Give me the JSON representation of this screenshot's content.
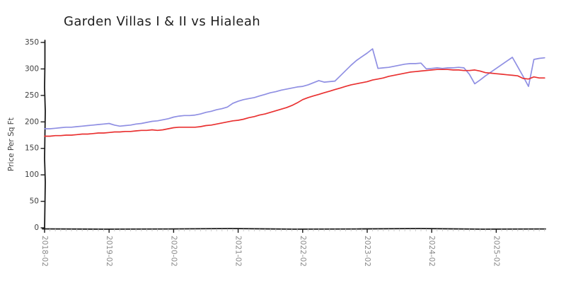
{
  "page": {
    "background": "#ffffff"
  },
  "chart": {
    "colors": {
      "axis": "#1a1a1a",
      "major_tick": "#1a1a1a",
      "minor_tick": "#c9c9c9",
      "y_tick_label": "#3f3f3f",
      "x_tick_label": "#8a8a8a",
      "title": "#1f1f1f"
    }
  },
  "chart_data": {
    "type": "line",
    "title": "Garden Villas I & II vs Hialeah",
    "xlabel": "",
    "ylabel": "Price Per Sq Ft",
    "ylim": [
      0,
      350
    ],
    "yticks": [
      0,
      50,
      100,
      150,
      200,
      250,
      300,
      350
    ],
    "xticks": [
      "2018-02",
      "2019-02",
      "2020-02",
      "2021-02",
      "2022-02",
      "2023-02",
      "2024-02",
      "2025-02"
    ],
    "xtick_rotation": 90,
    "grid": false,
    "legend": "none",
    "x": [
      "2018-02",
      "2018-03",
      "2018-04",
      "2018-05",
      "2018-06",
      "2018-07",
      "2018-08",
      "2018-09",
      "2018-10",
      "2018-11",
      "2018-12",
      "2019-01",
      "2019-02",
      "2019-03",
      "2019-04",
      "2019-05",
      "2019-06",
      "2019-07",
      "2019-08",
      "2019-09",
      "2019-10",
      "2019-11",
      "2019-12",
      "2020-01",
      "2020-02",
      "2020-03",
      "2020-04",
      "2020-05",
      "2020-06",
      "2020-07",
      "2020-08",
      "2020-09",
      "2020-10",
      "2020-11",
      "2020-12",
      "2021-01",
      "2021-02",
      "2021-03",
      "2021-04",
      "2021-05",
      "2021-06",
      "2021-07",
      "2021-08",
      "2021-09",
      "2021-10",
      "2021-11",
      "2021-12",
      "2022-01",
      "2022-02",
      "2022-03",
      "2022-04",
      "2022-05",
      "2022-06",
      "2022-07",
      "2022-08",
      "2022-09",
      "2022-10",
      "2022-11",
      "2022-12",
      "2023-01",
      "2023-02",
      "2023-03",
      "2023-04",
      "2023-05",
      "2023-06",
      "2023-07",
      "2023-08",
      "2023-09",
      "2023-10",
      "2023-11",
      "2023-12",
      "2024-01",
      "2024-02",
      "2024-03",
      "2024-04",
      "2024-05",
      "2024-06",
      "2024-07",
      "2024-08",
      "2024-09",
      "2024-10",
      "2024-11",
      "2024-12",
      "2025-01",
      "2025-02",
      "2025-03",
      "2025-04",
      "2025-05",
      "2025-06",
      "2025-07",
      "2025-08",
      "2025-09",
      "2025-10",
      "2025-11"
    ],
    "series": [
      {
        "name": "Garden Villas I & II",
        "color": "#8f8fe3",
        "values": [
          187,
          187,
          188,
          189,
          190,
          190,
          191,
          192,
          193,
          194,
          195,
          196,
          197,
          194,
          192,
          193,
          194,
          196,
          197,
          199,
          201,
          202,
          204,
          206,
          209,
          211,
          212,
          212,
          213,
          215,
          218,
          220,
          223,
          225,
          228,
          235,
          239,
          242,
          244,
          246,
          249,
          252,
          255,
          257,
          260,
          262,
          264,
          266,
          267,
          270,
          274,
          278,
          275,
          276,
          277,
          287,
          297,
          307,
          316,
          323,
          330,
          338,
          301,
          302,
          303,
          305,
          307,
          309,
          310,
          310,
          311,
          300,
          301,
          302,
          301,
          302,
          302,
          303,
          302,
          290,
          272,
          279,
          287,
          294,
          301,
          308,
          315,
          322,
          304,
          286,
          267,
          318,
          320,
          321
        ]
      },
      {
        "name": "Hialeah",
        "color": "#e93131",
        "values": [
          173,
          173,
          174,
          174,
          175,
          175,
          176,
          177,
          177,
          178,
          179,
          179,
          180,
          181,
          181,
          182,
          182,
          183,
          184,
          184,
          185,
          184,
          185,
          187,
          189,
          190,
          190,
          190,
          190,
          191,
          193,
          194,
          196,
          198,
          200,
          202,
          203,
          205,
          208,
          210,
          213,
          215,
          218,
          221,
          224,
          227,
          231,
          236,
          242,
          246,
          249,
          252,
          255,
          258,
          261,
          264,
          267,
          270,
          272,
          274,
          276,
          279,
          281,
          283,
          286,
          288,
          290,
          292,
          294,
          295,
          296,
          297,
          298,
          299,
          299,
          299,
          298,
          298,
          297,
          297,
          298,
          296,
          293,
          292,
          291,
          290,
          289,
          288,
          287,
          282,
          281,
          285,
          283,
          283
        ]
      }
    ]
  }
}
